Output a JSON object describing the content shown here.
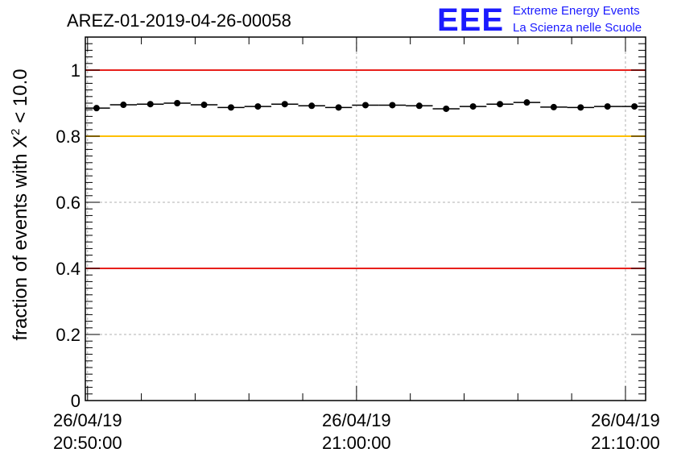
{
  "header": {
    "title": "AREZ-01-2019-04-26-00058",
    "logo_text": "EEE",
    "logo_line1": "Extreme Energy Events",
    "logo_line2": "La Scienza nelle Scuole"
  },
  "colors": {
    "data": "#000000",
    "threshold_red": "#e8201b",
    "threshold_yellow": "#ffc000",
    "logo": "#1a1aff",
    "grid": "#b0b0b0"
  },
  "chart_data": {
    "type": "scatter",
    "title": "AREZ-01-2019-04-26-00058",
    "ylabel_prefix": "fraction of events with ",
    "ylabel_symbol": "X",
    "ylabel_exponent": "2",
    "ylabel_suffix": " < 10.0",
    "xlabel": "",
    "ylim": [
      0,
      1.1
    ],
    "xlim": [
      "2019-04-26 20:49:55",
      "2019-04-26 21:10:45"
    ],
    "y_ticks": [
      {
        "value": 0,
        "label": "0"
      },
      {
        "value": 0.2,
        "label": "0.2"
      },
      {
        "value": 0.4,
        "label": "0.4"
      },
      {
        "value": 0.6,
        "label": "0.6"
      },
      {
        "value": 0.8,
        "label": "0.8"
      },
      {
        "value": 1,
        "label": "1"
      }
    ],
    "x_ticks": [
      {
        "time": "2019-04-26 20:50:00",
        "date_label": "26/04/19",
        "time_label": "20:50:00"
      },
      {
        "time": "2019-04-26 21:00:00",
        "date_label": "26/04/19",
        "time_label": "21:00:00"
      },
      {
        "time": "2019-04-26 21:10:00",
        "date_label": "26/04/19",
        "time_label": "21:10:00"
      }
    ],
    "grid": true,
    "thresholds": [
      {
        "y": 1.0,
        "color": "#e8201b"
      },
      {
        "y": 0.8,
        "color": "#ffc000"
      },
      {
        "y": 0.4,
        "color": "#e8201b"
      }
    ],
    "series": [
      {
        "bin_width_s": 60,
        "points": [
          {
            "x": "2019-04-26 20:50:20",
            "y": 0.885
          },
          {
            "x": "2019-04-26 20:51:20",
            "y": 0.895
          },
          {
            "x": "2019-04-26 20:52:20",
            "y": 0.897
          },
          {
            "x": "2019-04-26 20:53:20",
            "y": 0.9
          },
          {
            "x": "2019-04-26 20:54:20",
            "y": 0.895
          },
          {
            "x": "2019-04-26 20:55:20",
            "y": 0.887
          },
          {
            "x": "2019-04-26 20:56:20",
            "y": 0.89
          },
          {
            "x": "2019-04-26 20:57:20",
            "y": 0.897
          },
          {
            "x": "2019-04-26 20:58:20",
            "y": 0.892
          },
          {
            "x": "2019-04-26 20:59:20",
            "y": 0.887
          },
          {
            "x": "2019-04-26 21:00:20",
            "y": 0.894
          },
          {
            "x": "2019-04-26 21:01:20",
            "y": 0.894
          },
          {
            "x": "2019-04-26 21:02:20",
            "y": 0.892
          },
          {
            "x": "2019-04-26 21:03:20",
            "y": 0.883
          },
          {
            "x": "2019-04-26 21:04:20",
            "y": 0.89
          },
          {
            "x": "2019-04-26 21:05:20",
            "y": 0.897
          },
          {
            "x": "2019-04-26 21:06:20",
            "y": 0.902
          },
          {
            "x": "2019-04-26 21:07:20",
            "y": 0.888
          },
          {
            "x": "2019-04-26 21:08:20",
            "y": 0.887
          },
          {
            "x": "2019-04-26 21:09:20",
            "y": 0.89
          },
          {
            "x": "2019-04-26 21:10:20",
            "y": 0.89
          }
        ]
      }
    ]
  }
}
